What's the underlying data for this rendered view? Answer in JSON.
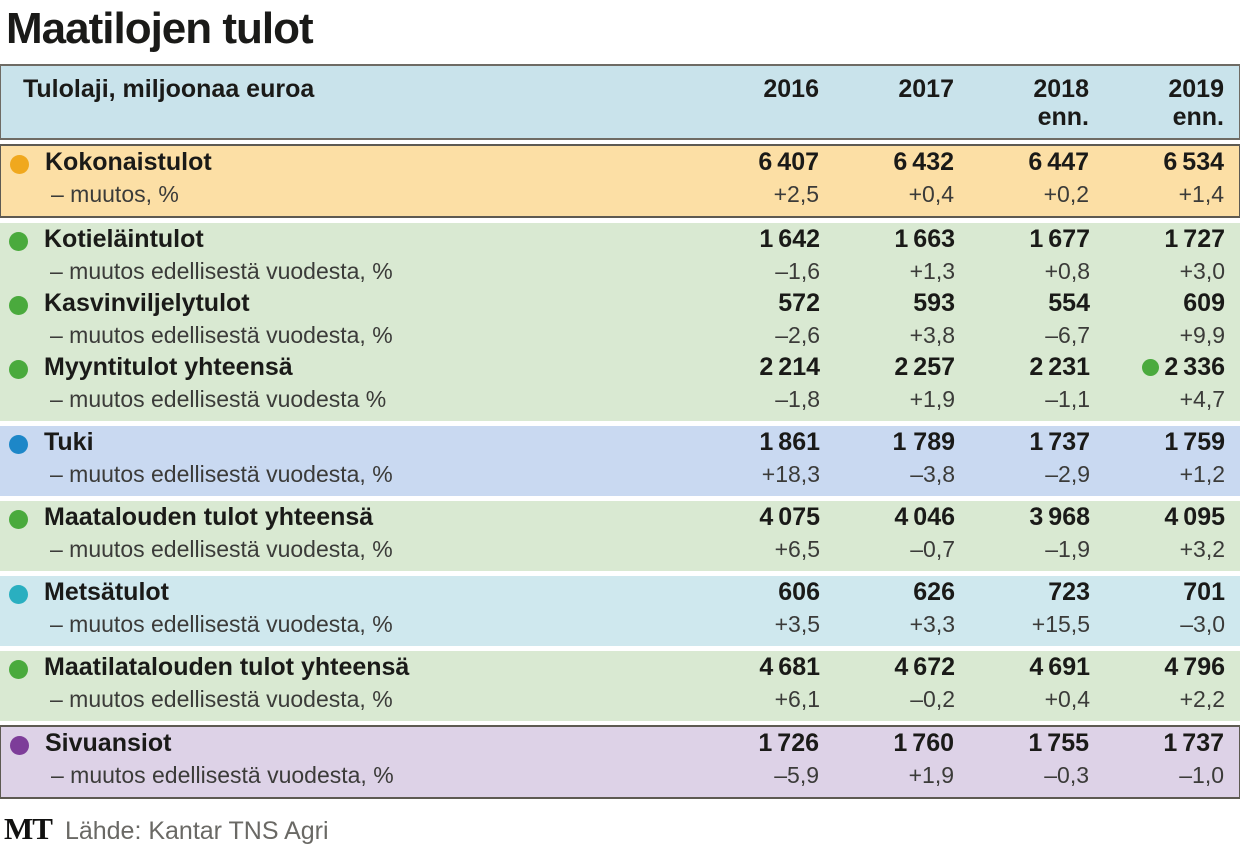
{
  "title": "Maatilojen tulot",
  "table": {
    "header": {
      "label": "Tulolaji, miljoonaa euroa",
      "years": [
        {
          "label": "2016",
          "note": ""
        },
        {
          "label": "2017",
          "note": ""
        },
        {
          "label": "2018",
          "note": "enn."
        },
        {
          "label": "2019",
          "note": "enn."
        }
      ]
    },
    "blocks": [
      {
        "bg": "#fcdfa5",
        "bullet": "#f0a81e",
        "framed": true,
        "rows": [
          {
            "name": "Kokonaistulot",
            "sub": "– muutos, %",
            "values": [
              "6 407",
              "6 432",
              "6 447",
              "6 534"
            ],
            "changes": [
              "+2,5",
              "+0,4",
              "+0,2",
              "+1,4"
            ]
          }
        ]
      },
      {
        "bg": "#d9e9d2",
        "bullet": "#4aaa3d",
        "framed": false,
        "rows": [
          {
            "name": "Kotieläintulot",
            "sub": "– muutos edellisestä vuodesta, %",
            "values": [
              "1 642",
              "1 663",
              "1 677",
              "1 727"
            ],
            "changes": [
              "–1,6",
              "+1,3",
              "+0,8",
              "+3,0"
            ]
          },
          {
            "name": "Kasvinviljelytulot",
            "sub": "– muutos edellisestä vuodesta, %",
            "values": [
              "572",
              "593",
              "554",
              "609"
            ],
            "changes": [
              "–2,6",
              "+3,8",
              "–6,7",
              "+9,9"
            ]
          },
          {
            "name": "Myyntitulot yhteensä",
            "sub": "– muutos edellisestä vuodesta %",
            "values": [
              "2 214",
              "2 257",
              "2 231",
              "2 336"
            ],
            "changes": [
              "–1,8",
              "+1,9",
              "–1,1",
              "+4,7"
            ],
            "dot_before_last": true
          }
        ]
      },
      {
        "bg": "#c9d9f1",
        "bullet": "#1d87c8",
        "framed": false,
        "rows": [
          {
            "name": "Tuki",
            "sub": "– muutos edellisestä vuodesta, %",
            "values": [
              "1 861",
              "1 789",
              "1 737",
              "1 759"
            ],
            "changes": [
              "+18,3",
              "–3,8",
              "–2,9",
              "+1,2"
            ]
          }
        ]
      },
      {
        "bg": "#d9e9d2",
        "bullet": "#4aaa3d",
        "framed": false,
        "rows": [
          {
            "name": "Maatalouden tulot yhteensä",
            "sub": "– muutos edellisestä vuodesta, %",
            "values": [
              "4 075",
              "4 046",
              "3 968",
              "4 095"
            ],
            "changes": [
              "+6,5",
              "–0,7",
              "–1,9",
              "+3,2"
            ]
          }
        ]
      },
      {
        "bg": "#cfe8ee",
        "bullet": "#2aafc0",
        "framed": false,
        "rows": [
          {
            "name": "Metsätulot",
            "sub": "– muutos edellisestä vuodesta, %",
            "values": [
              "606",
              "626",
              "723",
              "701"
            ],
            "changes": [
              "+3,5",
              "+3,3",
              "+15,5",
              "–3,0"
            ]
          }
        ]
      },
      {
        "bg": "#d9e9d2",
        "bullet": "#4aaa3d",
        "framed": false,
        "rows": [
          {
            "name": "Maatilatalouden tulot yhteensä",
            "sub": "– muutos edellisestä vuodesta, %",
            "values": [
              "4 681",
              "4 672",
              "4 691",
              "4 796"
            ],
            "changes": [
              "+6,1",
              "–0,2",
              "+0,4",
              "+2,2"
            ]
          }
        ]
      },
      {
        "bg": "#ddd2e7",
        "bullet": "#7d3d99",
        "framed": true,
        "rows": [
          {
            "name": "Sivuansiot",
            "sub": "– muutos edellisestä vuodesta, %",
            "values": [
              "1 726",
              "1 760",
              "1 755",
              "1 737"
            ],
            "changes": [
              "–5,9",
              "+1,9",
              "–0,3",
              "–1,0"
            ]
          }
        ]
      }
    ]
  },
  "footer": {
    "logo": "MT",
    "source": "Lähde: Kantar TNS Agri"
  },
  "colors": {
    "header_bg": "#c9e3eb",
    "frame_border": "#5d5a52",
    "total_bg": "#fcdfa5",
    "total_bullet": "#f0a81e",
    "farm_bg": "#d9e9d2",
    "farm_bullet": "#4aaa3d",
    "support_bg": "#c9d9f1",
    "support_bullet": "#1d87c8",
    "forest_bg": "#cfe8ee",
    "forest_bullet": "#2aafc0",
    "side_bg": "#ddd2e7",
    "side_bullet": "#7d3d99"
  },
  "chart_data": {
    "type": "table",
    "title": "Maatilojen tulot",
    "unit_label": "Tulolaji, miljoonaa euroa",
    "columns": [
      "2016",
      "2017",
      "2018 enn.",
      "2019 enn."
    ],
    "rows": [
      {
        "name": "Kokonaistulot",
        "values": [
          6407,
          6432,
          6447,
          6534
        ],
        "change_pct": [
          2.5,
          0.4,
          0.2,
          1.4
        ]
      },
      {
        "name": "Kotieläintulot",
        "values": [
          1642,
          1663,
          1677,
          1727
        ],
        "change_pct": [
          -1.6,
          1.3,
          0.8,
          3.0
        ]
      },
      {
        "name": "Kasvinviljelytulot",
        "values": [
          572,
          593,
          554,
          609
        ],
        "change_pct": [
          -2.6,
          3.8,
          -6.7,
          9.9
        ]
      },
      {
        "name": "Myyntitulot yhteensä",
        "values": [
          2214,
          2257,
          2231,
          2336
        ],
        "change_pct": [
          -1.8,
          1.9,
          -1.1,
          4.7
        ]
      },
      {
        "name": "Tuki",
        "values": [
          1861,
          1789,
          1737,
          1759
        ],
        "change_pct": [
          18.3,
          -3.8,
          -2.9,
          1.2
        ]
      },
      {
        "name": "Maatalouden tulot yhteensä",
        "values": [
          4075,
          4046,
          3968,
          4095
        ],
        "change_pct": [
          6.5,
          -0.7,
          -1.9,
          3.2
        ]
      },
      {
        "name": "Metsätulot",
        "values": [
          606,
          626,
          723,
          701
        ],
        "change_pct": [
          3.5,
          3.3,
          15.5,
          -3.0
        ]
      },
      {
        "name": "Maatilatalouden tulot yhteensä",
        "values": [
          4681,
          4672,
          4691,
          4796
        ],
        "change_pct": [
          6.1,
          -0.2,
          0.4,
          2.2
        ]
      },
      {
        "name": "Sivuansiot",
        "values": [
          1726,
          1760,
          1755,
          1737
        ],
        "change_pct": [
          -5.9,
          1.9,
          -0.3,
          -1.0
        ]
      }
    ],
    "source": "Lähde: Kantar TNS Agri"
  }
}
